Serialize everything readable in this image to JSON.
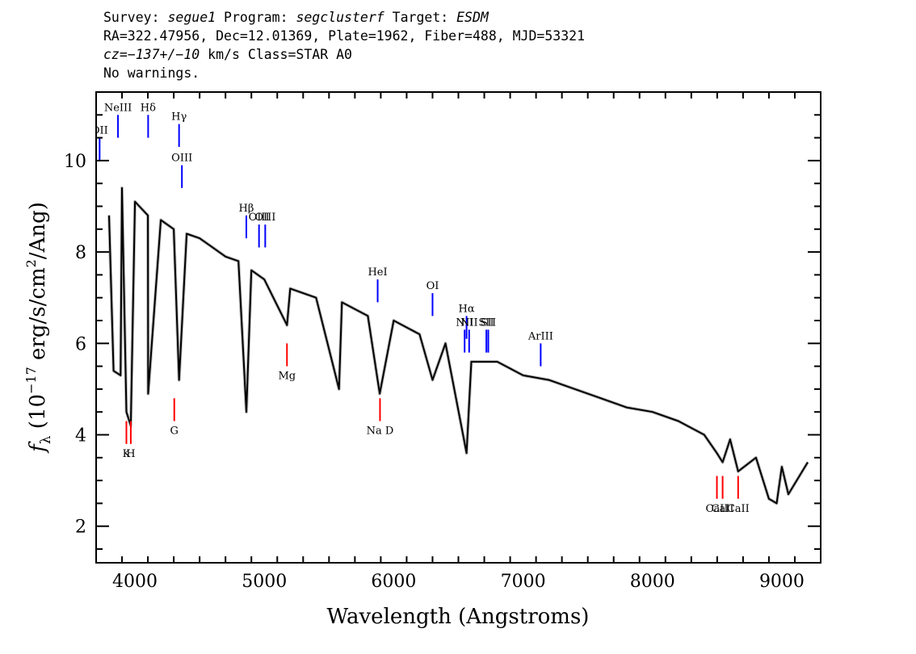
{
  "header": {
    "line1": {
      "survey_label": "Survey: ",
      "survey": "segue1",
      "program_label": " Program: ",
      "program": "segclusterf",
      "target_label": " Target: ",
      "target": "ESDM"
    },
    "line2": "RA=322.47956, Dec=12.01369, Plate=1962, Fiber=488, MJD=53321",
    "line3": {
      "cz_label": "cz",
      "eq": "=",
      "cz_value": "−137+/−10",
      "unit_class": " km/s Class=STAR A0"
    },
    "line4": "No warnings."
  },
  "chart_data": {
    "type": "line",
    "xlabel": "Wavelength (Angstroms)",
    "ylabel": "f_λ (10^-17 erg/s/cm^2/Ang)",
    "ylabel_parts": {
      "f": "f",
      "sub": "λ",
      "open": " (10",
      "exp1": "−17",
      "mid": " erg/s/cm",
      "exp2": "2",
      "close": "/Ang)"
    },
    "xlim": [
      3700,
      9300
    ],
    "ylim": [
      1.2,
      11.5
    ],
    "xticks": [
      4000,
      5000,
      6000,
      7000,
      8000,
      9000
    ],
    "yticks": [
      2,
      4,
      6,
      8,
      10
    ],
    "series": [
      {
        "color": "#bbbbbb",
        "x": [
          3800,
          3900,
          4000,
          4100,
          4200,
          4300,
          4400,
          4500,
          4600,
          4700,
          4800,
          4900,
          5000,
          5200,
          5400,
          5600,
          5800,
          6000,
          6200,
          6400,
          6600,
          6800,
          7000,
          7200,
          7400,
          7600,
          7800,
          8000,
          8200,
          8400,
          8600,
          8800,
          9000,
          9200
        ],
        "y": [
          8.8,
          9.4,
          9.1,
          8.8,
          8.7,
          8.5,
          8.4,
          8.3,
          8.1,
          7.9,
          7.8,
          7.6,
          7.4,
          7.2,
          7.0,
          6.9,
          6.6,
          6.5,
          6.2,
          6.0,
          5.6,
          5.6,
          5.3,
          5.2,
          5.0,
          4.8,
          4.6,
          4.5,
          4.3,
          4.0,
          3.9,
          3.5,
          3.3,
          3.4
        ]
      },
      {
        "color": "#000000",
        "x": [
          3800,
          3900,
          4000,
          4100,
          4200,
          4300,
          4400,
          4500,
          4600,
          4700,
          4800,
          4900,
          5000,
          5200,
          5400,
          5600,
          5800,
          6000,
          6200,
          6400,
          6600,
          6800,
          7000,
          7200,
          7400,
          7600,
          7800,
          8000,
          8200,
          8400,
          8600,
          8800,
          9000,
          9200
        ],
        "y": [
          8.8,
          9.4,
          9.1,
          8.8,
          8.7,
          8.5,
          8.4,
          8.3,
          8.1,
          7.9,
          7.8,
          7.6,
          7.4,
          7.2,
          7.0,
          6.9,
          6.6,
          6.5,
          6.2,
          6.0,
          5.6,
          5.6,
          5.3,
          5.2,
          5.0,
          4.8,
          4.6,
          4.5,
          4.3,
          4.0,
          3.9,
          3.5,
          3.3,
          3.4
        ]
      }
    ],
    "absorption_dips": [
      {
        "x": 3835,
        "y": 5.4
      },
      {
        "x": 3889,
        "y": 5.3
      },
      {
        "x": 3934,
        "y": 4.5
      },
      {
        "x": 3968,
        "y": 4.2
      },
      {
        "x": 4102,
        "y": 4.9
      },
      {
        "x": 4341,
        "y": 5.2
      },
      {
        "x": 4861,
        "y": 4.5
      },
      {
        "x": 5175,
        "y": 6.4
      },
      {
        "x": 5577,
        "y": 5.0
      },
      {
        "x": 5892,
        "y": 4.9
      },
      {
        "x": 6300,
        "y": 5.2
      },
      {
        "x": 6563,
        "y": 3.6
      },
      {
        "x": 8498,
        "y": 3.6
      },
      {
        "x": 8542,
        "y": 3.4
      },
      {
        "x": 8662,
        "y": 3.2
      },
      {
        "x": 8900,
        "y": 2.6
      },
      {
        "x": 8960,
        "y": 2.5
      },
      {
        "x": 9050,
        "y": 2.7
      }
    ],
    "emission_lines": [
      {
        "label": "OII",
        "x": 3727,
        "y1": 10.0,
        "y2": 10.5
      },
      {
        "label": "NeIII",
        "x": 3869,
        "y1": 10.5,
        "y2": 11.0
      },
      {
        "label": "Hδ",
        "x": 4102,
        "y1": 10.5,
        "y2": 11.0
      },
      {
        "label": "Hγ",
        "x": 4341,
        "y1": 10.3,
        "y2": 10.8
      },
      {
        "label": "OIII",
        "x": 4363,
        "y1": 9.4,
        "y2": 9.9
      },
      {
        "label": "Hβ",
        "x": 4861,
        "y1": 8.3,
        "y2": 8.8
      },
      {
        "label": "OIII",
        "x": 4959,
        "y1": 8.1,
        "y2": 8.6
      },
      {
        "label": "OIII",
        "x": 5007,
        "y1": 8.1,
        "y2": 8.6
      },
      {
        "label": "HeI",
        "x": 5876,
        "y1": 6.9,
        "y2": 7.4
      },
      {
        "label": "OI",
        "x": 6300,
        "y1": 6.6,
        "y2": 7.1
      },
      {
        "label": "NII",
        "x": 6548,
        "y1": 5.8,
        "y2": 6.3
      },
      {
        "label": "Hα",
        "x": 6563,
        "y1": 6.1,
        "y2": 6.6
      },
      {
        "label": "NII",
        "x": 6583,
        "y1": 5.8,
        "y2": 6.3
      },
      {
        "label": "SII",
        "x": 6716,
        "y1": 5.8,
        "y2": 6.3
      },
      {
        "label": "SII",
        "x": 6731,
        "y1": 5.8,
        "y2": 6.3
      },
      {
        "label": "ArIII",
        "x": 7136,
        "y1": 5.5,
        "y2": 6.0
      }
    ],
    "absorption_lines": [
      {
        "label": "K",
        "x": 3934,
        "y1": 3.8,
        "y2": 4.3
      },
      {
        "label": "H",
        "x": 3968,
        "y1": 3.8,
        "y2": 4.3
      },
      {
        "label": "G",
        "x": 4304,
        "y1": 4.3,
        "y2": 4.8
      },
      {
        "label": "Mg",
        "x": 5175,
        "y1": 5.5,
        "y2": 6.0
      },
      {
        "label": "Na D",
        "x": 5894,
        "y1": 4.3,
        "y2": 4.8
      },
      {
        "label": "CaII",
        "x": 8498,
        "y1": 2.6,
        "y2": 3.1
      },
      {
        "label": "CaII",
        "x": 8542,
        "y1": 2.6,
        "y2": 3.1
      },
      {
        "label": "CaII",
        "x": 8662,
        "y1": 2.6,
        "y2": 3.1
      }
    ],
    "colors": {
      "emission": "#0000ff",
      "absorption": "#ff0000",
      "flux": "#000000",
      "error": "#bbbbbb"
    }
  }
}
